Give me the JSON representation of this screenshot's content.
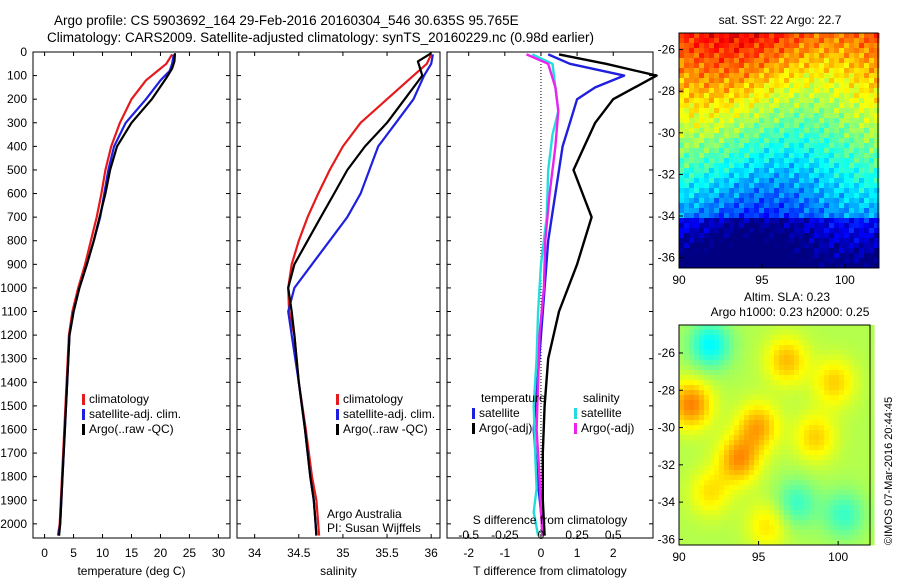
{
  "header": {
    "line1": "Argo profile: CS 5903692_164 29-Feb-2016 20160304_546 30.635S 95.765E",
    "line2": "Climatology: CARS2009. Satellite-adjusted climatology: synTS_20160229.nc (0.98d earlier)"
  },
  "chart_data": [
    {
      "type": "line",
      "id": "temperature-profile",
      "xlabel": "temperature (deg C)",
      "xlim": [
        -2,
        32
      ],
      "xticks": [
        0,
        5,
        10,
        15,
        20,
        25,
        30
      ],
      "ylim": [
        2060,
        0
      ],
      "yticks": [
        0,
        100,
        200,
        300,
        400,
        500,
        600,
        700,
        800,
        900,
        1000,
        1100,
        1200,
        1300,
        1400,
        1500,
        1600,
        1700,
        1800,
        1900,
        2000
      ],
      "legend": [
        "climatology",
        "satellite-adj. clim.",
        "Argo(..raw -QC)"
      ],
      "series": [
        {
          "name": "climatology",
          "color": "#e41a1c",
          "x": [
            22.0,
            21.0,
            19.5,
            17.5,
            15.0,
            13.0,
            11.5,
            10.5,
            9.8,
            9.0,
            8.0,
            7.0,
            5.8,
            4.8,
            4.2,
            3.8,
            3.4,
            3.0,
            2.6,
            2.3
          ],
          "y": [
            10,
            50,
            80,
            120,
            200,
            300,
            400,
            500,
            600,
            700,
            800,
            900,
            1000,
            1100,
            1200,
            1400,
            1600,
            1800,
            2000,
            2050
          ]
        },
        {
          "name": "satellite-adj. clim.",
          "color": "#1f1fe0",
          "x": [
            22.3,
            22.0,
            21.6,
            20.0,
            17.5,
            14.0,
            12.0,
            11.0,
            10.3,
            9.6,
            8.5,
            7.3,
            6.0,
            5.0,
            4.3,
            3.9,
            3.5,
            3.1,
            2.7,
            2.4
          ],
          "y": [
            10,
            50,
            80,
            120,
            200,
            300,
            400,
            500,
            600,
            700,
            800,
            900,
            1000,
            1100,
            1200,
            1400,
            1600,
            1800,
            2000,
            2050
          ]
        },
        {
          "name": "Argo(..raw -QC)",
          "color": "#000000",
          "x": [
            22.5,
            22.4,
            22.0,
            21.0,
            18.5,
            15.0,
            12.5,
            11.3,
            10.5,
            9.5,
            8.5,
            7.3,
            6.0,
            5.0,
            4.3,
            3.9,
            3.5,
            3.1,
            2.7,
            2.5
          ],
          "y": [
            5,
            40,
            70,
            110,
            200,
            300,
            400,
            500,
            600,
            700,
            800,
            900,
            1000,
            1100,
            1200,
            1400,
            1600,
            1800,
            2000,
            2050
          ]
        }
      ]
    },
    {
      "type": "line",
      "id": "salinity-profile",
      "xlabel": "salinity",
      "xlim": [
        33.8,
        36.1
      ],
      "xticks": [
        34,
        34.5,
        35,
        35.5,
        36
      ],
      "xticklabels": [
        "34",
        "34.5",
        "35",
        "35.5",
        "36"
      ],
      "ylim": [
        2060,
        0
      ],
      "legend": [
        "climatology",
        "satellite-adj. clim.",
        "Argo(..raw -QC)"
      ],
      "annotations": [
        "Argo Australia",
        "PI: Susan Wijffels"
      ],
      "series": [
        {
          "name": "climatology",
          "color": "#e41a1c",
          "x": [
            36.0,
            35.95,
            35.8,
            35.5,
            35.2,
            35.0,
            34.85,
            34.72,
            34.6,
            34.5,
            34.42,
            34.38,
            34.39,
            34.45,
            34.5,
            34.58,
            34.65,
            34.7,
            34.72,
            34.73
          ],
          "y": [
            10,
            50,
            100,
            200,
            300,
            400,
            500,
            600,
            700,
            800,
            900,
            1000,
            1100,
            1200,
            1400,
            1600,
            1800,
            1900,
            2000,
            2050
          ]
        },
        {
          "name": "satellite-adj. clim.",
          "color": "#1f1fe0",
          "x": [
            36.02,
            36.0,
            35.92,
            35.8,
            35.6,
            35.4,
            35.3,
            35.2,
            35.05,
            34.85,
            34.65,
            34.45,
            34.38,
            34.42,
            34.5,
            34.57,
            34.63,
            34.67,
            34.69,
            34.7
          ],
          "y": [
            10,
            50,
            100,
            200,
            300,
            400,
            500,
            600,
            700,
            800,
            900,
            1000,
            1100,
            1200,
            1400,
            1600,
            1800,
            1900,
            2000,
            2050
          ]
        },
        {
          "name": "Argo(..raw -QC)",
          "color": "#000000",
          "x": [
            36.0,
            35.85,
            35.9,
            35.7,
            35.5,
            35.25,
            35.05,
            34.9,
            34.75,
            34.6,
            34.45,
            34.38,
            34.42,
            34.45,
            34.5,
            34.57,
            34.63,
            34.67,
            34.69,
            34.7
          ],
          "y": [
            5,
            40,
            100,
            200,
            300,
            400,
            500,
            600,
            700,
            800,
            900,
            1000,
            1100,
            1200,
            1400,
            1600,
            1800,
            1900,
            2000,
            2050
          ]
        }
      ]
    },
    {
      "type": "line",
      "id": "difference-profile",
      "xlabel": "T difference from climatology",
      "xlabel_top": "S difference from climatology",
      "xlim": [
        -2.6,
        3.1
      ],
      "xticks": [
        -2,
        -1,
        0,
        1,
        2
      ],
      "s_ticks": [
        -0.5,
        -0.25,
        0,
        0.25,
        0.5
      ],
      "s_ticklabels": [
        "-0.5",
        "-0.25",
        "0",
        "0.25",
        "0.5"
      ],
      "ylim": [
        2060,
        0
      ],
      "legend_groups": [
        {
          "title": "temperature",
          "items": [
            "satellite",
            "Argo(-adj)"
          ]
        },
        {
          "title": "salinity",
          "items": [
            "satellite",
            "Argo(-adj)"
          ]
        }
      ],
      "series": [
        {
          "name": "temperature satellite",
          "color": "#1f1fe0",
          "x": [
            0.2,
            0.8,
            2.3,
            1.5,
            1.0,
            0.8,
            0.6,
            0.4,
            0.2,
            0.1,
            0.0,
            -0.1,
            -0.2,
            -0.1,
            0.0,
            0.1
          ],
          "y": [
            10,
            50,
            100,
            150,
            200,
            300,
            400,
            600,
            800,
            1000,
            1200,
            1400,
            1600,
            1800,
            1950,
            2050
          ]
        },
        {
          "name": "temperature Argo(-adj)",
          "color": "#000000",
          "x": [
            0.5,
            1.8,
            3.2,
            2.0,
            1.5,
            1.2,
            0.9,
            1.4,
            1.0,
            0.5,
            0.2,
            0.1,
            0.05,
            0.05,
            0.1
          ],
          "y": [
            10,
            50,
            100,
            200,
            300,
            400,
            500,
            700,
            900,
            1100,
            1300,
            1500,
            1700,
            1900,
            2050
          ]
        },
        {
          "name": "salinity satellite",
          "color": "#22dddd",
          "x": [
            -0.06,
            0.08,
            0.1,
            0.12,
            0.08,
            0.05,
            0.04,
            0.0,
            -0.02,
            -0.03,
            -0.05,
            -0.04,
            -0.03,
            -0.05,
            -0.02
          ],
          "y": [
            10,
            50,
            150,
            250,
            350,
            500,
            700,
            900,
            1100,
            1300,
            1500,
            1700,
            1850,
            1950,
            2050
          ]
        },
        {
          "name": "salinity Argo(-adj)",
          "color": "#ee22ee",
          "x": [
            -0.1,
            0.05,
            0.1,
            0.12,
            0.1,
            0.06,
            0.03,
            0.02,
            -0.01,
            -0.02,
            -0.03,
            -0.01,
            0.0,
            0.01
          ],
          "y": [
            10,
            50,
            150,
            250,
            400,
            600,
            800,
            1000,
            1200,
            1400,
            1600,
            1800,
            1950,
            2050
          ]
        }
      ]
    },
    {
      "type": "heatmap",
      "id": "sst-map",
      "title": "sat. SST: 22  Argo: 22.7",
      "xlim": [
        90,
        102
      ],
      "xticks": [
        90,
        95,
        100
      ],
      "ylim": [
        -36.5,
        -25.2
      ],
      "yticks": [
        -26,
        -28,
        -30,
        -32,
        -34,
        -36
      ]
    },
    {
      "type": "heatmap",
      "id": "sla-map",
      "title": "Altim. SLA: 0.23",
      "subtitle": "Argo h1000: 0.23 h2000: 0.25",
      "xlim": [
        90,
        102
      ],
      "xticks": [
        90,
        95,
        100
      ],
      "ylim": [
        -36.3,
        -24.5
      ],
      "yticks": [
        -26,
        -28,
        -30,
        -32,
        -34,
        -36
      ],
      "side_text": "©IMOS 07-Mar-2016 20:44:45"
    }
  ]
}
